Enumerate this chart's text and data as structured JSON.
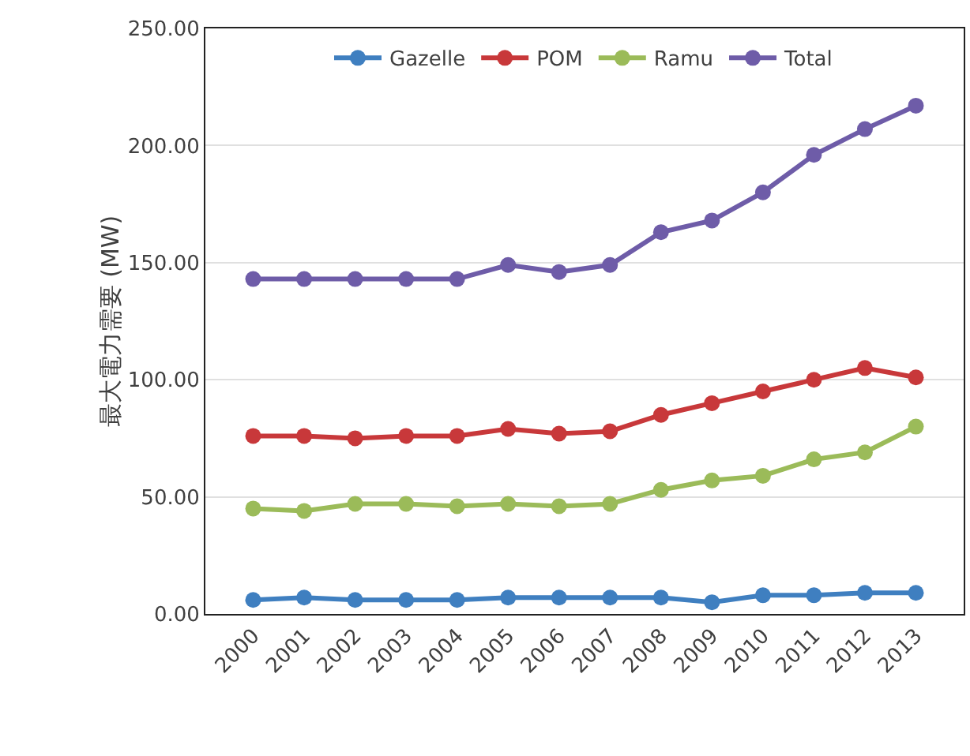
{
  "chart_data": {
    "type": "line",
    "ylabel": "最大電力需要 (MW)",
    "categories": [
      "2000",
      "2001",
      "2002",
      "2003",
      "2004",
      "2005",
      "2006",
      "2007",
      "2008",
      "2009",
      "2010",
      "2011",
      "2012",
      "2013"
    ],
    "series": [
      {
        "name": "Gazelle",
        "color": "#3f7fc0",
        "values": [
          6,
          7,
          6,
          6,
          6,
          7,
          7,
          7,
          7,
          5,
          8,
          8,
          9,
          9
        ]
      },
      {
        "name": "POM",
        "color": "#c8383a",
        "values": [
          76,
          76,
          75,
          76,
          76,
          79,
          77,
          78,
          85,
          90,
          95,
          100,
          105,
          101
        ]
      },
      {
        "name": "Ramu",
        "color": "#9bbb59",
        "values": [
          45,
          44,
          47,
          47,
          46,
          47,
          46,
          47,
          53,
          57,
          59,
          66,
          69,
          80
        ]
      },
      {
        "name": "Total",
        "color": "#6e5ca8",
        "values": [
          143,
          143,
          143,
          143,
          143,
          149,
          146,
          149,
          163,
          168,
          180,
          196,
          207,
          217
        ]
      }
    ],
    "ylim": [
      0,
      250
    ],
    "yticks": [
      {
        "value": 0,
        "label": "0.00"
      },
      {
        "value": 50,
        "label": "50.00"
      },
      {
        "value": 100,
        "label": "100.00"
      },
      {
        "value": 150,
        "label": "150.00"
      },
      {
        "value": 200,
        "label": "200.00"
      },
      {
        "value": 250,
        "label": "250.00"
      }
    ],
    "grid": "y",
    "legend": "top",
    "marker": "circle",
    "line_style": "solid"
  }
}
